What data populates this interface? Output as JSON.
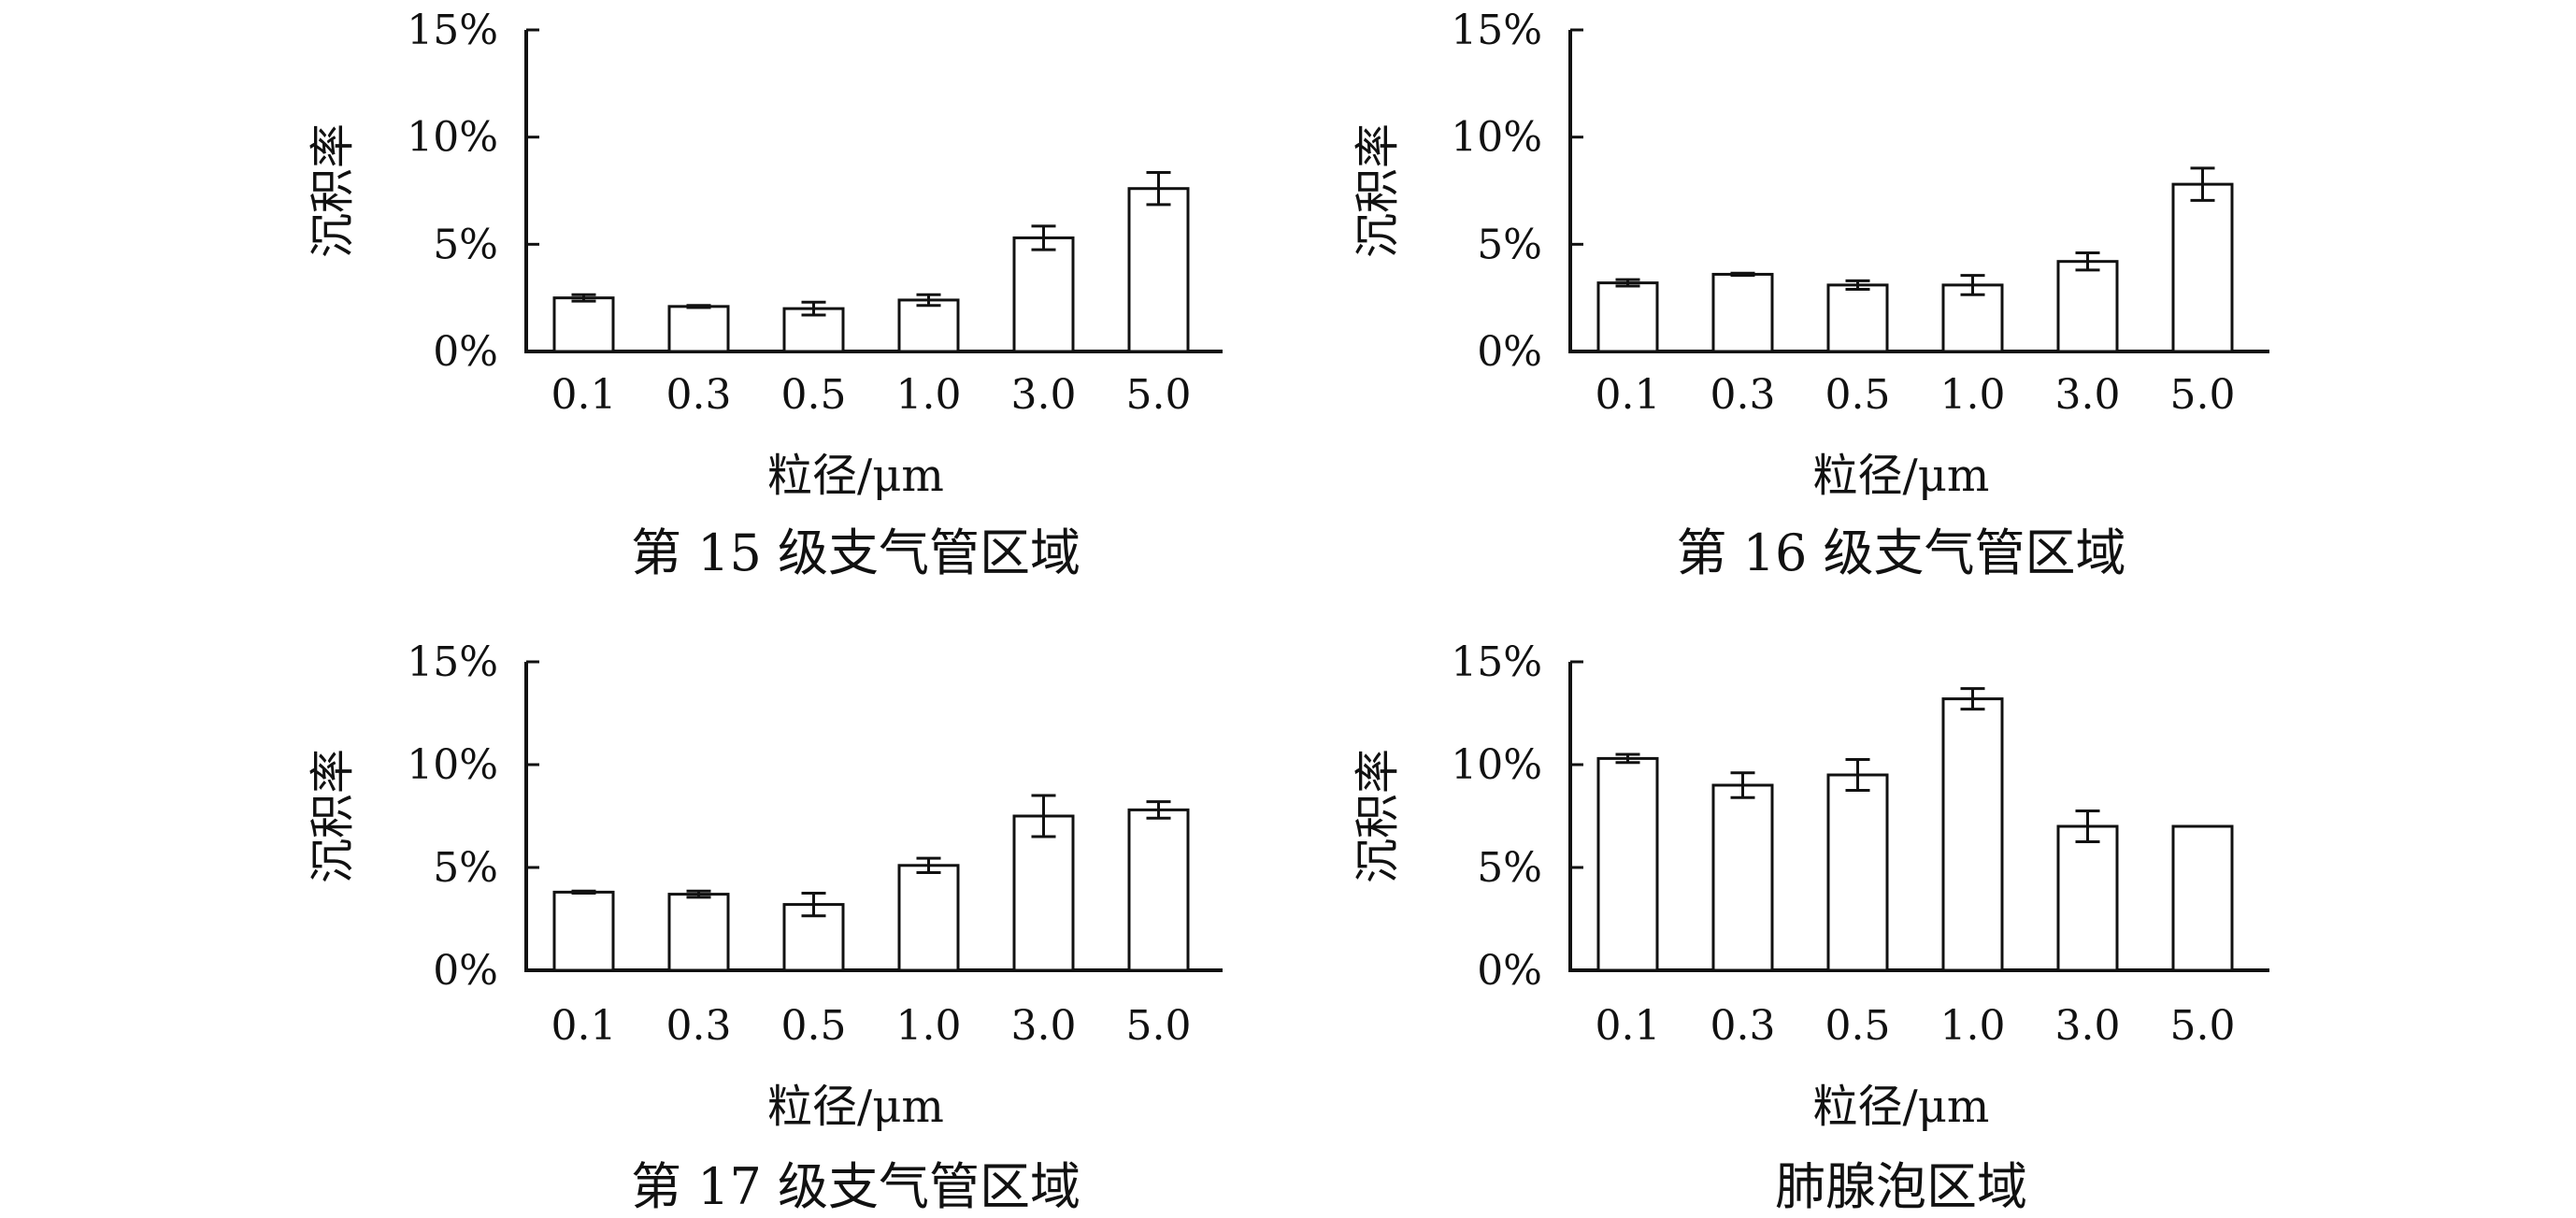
{
  "chart_data": [
    {
      "type": "bar",
      "title": "第 15 级支气管区域",
      "xlabel": "粒径/μm",
      "ylabel": "沉积率",
      "categories": [
        "0.1",
        "0.3",
        "0.5",
        "1.0",
        "3.0",
        "5.0"
      ],
      "values": [
        2.5,
        2.1,
        2.0,
        2.4,
        5.3,
        7.6
      ],
      "errors": [
        0.15,
        0.05,
        0.3,
        0.25,
        0.55,
        0.75
      ],
      "ylim": [
        0,
        15
      ],
      "yticks": [
        "0%",
        "5%",
        "10%",
        "15%"
      ],
      "grid": false
    },
    {
      "type": "bar",
      "title": "第 16 级支气管区域",
      "xlabel": "粒径/μm",
      "ylabel": "沉积率",
      "categories": [
        "0.1",
        "0.3",
        "0.5",
        "1.0",
        "3.0",
        "5.0"
      ],
      "values": [
        3.2,
        3.6,
        3.1,
        3.1,
        4.2,
        7.8
      ],
      "errors": [
        0.15,
        0.05,
        0.2,
        0.45,
        0.4,
        0.75
      ],
      "ylim": [
        0,
        15
      ],
      "yticks": [
        "0%",
        "5%",
        "10%",
        "15%"
      ],
      "grid": false
    },
    {
      "type": "bar",
      "title": "第 17 级支气管区域",
      "xlabel": "粒径/μm",
      "ylabel": "沉积率",
      "categories": [
        "0.1",
        "0.3",
        "0.5",
        "1.0",
        "3.0",
        "5.0"
      ],
      "values": [
        3.8,
        3.7,
        3.2,
        5.1,
        7.5,
        7.8
      ],
      "errors": [
        0.05,
        0.15,
        0.55,
        0.35,
        1.0,
        0.4
      ],
      "ylim": [
        0,
        15
      ],
      "yticks": [
        "0%",
        "5%",
        "10%",
        "15%"
      ],
      "grid": false
    },
    {
      "type": "bar",
      "title": "肺腺泡区域",
      "xlabel": "粒径/μm",
      "ylabel": "沉积率",
      "categories": [
        "0.1",
        "0.3",
        "0.5",
        "1.0",
        "3.0",
        "5.0"
      ],
      "values": [
        10.3,
        9.0,
        9.5,
        13.2,
        7.0,
        7.0
      ],
      "errors": [
        0.2,
        0.6,
        0.75,
        0.5,
        0.75,
        0.0
      ],
      "ylim": [
        0,
        15
      ],
      "yticks": [
        "0%",
        "5%",
        "10%",
        "15%"
      ],
      "grid": false
    }
  ]
}
